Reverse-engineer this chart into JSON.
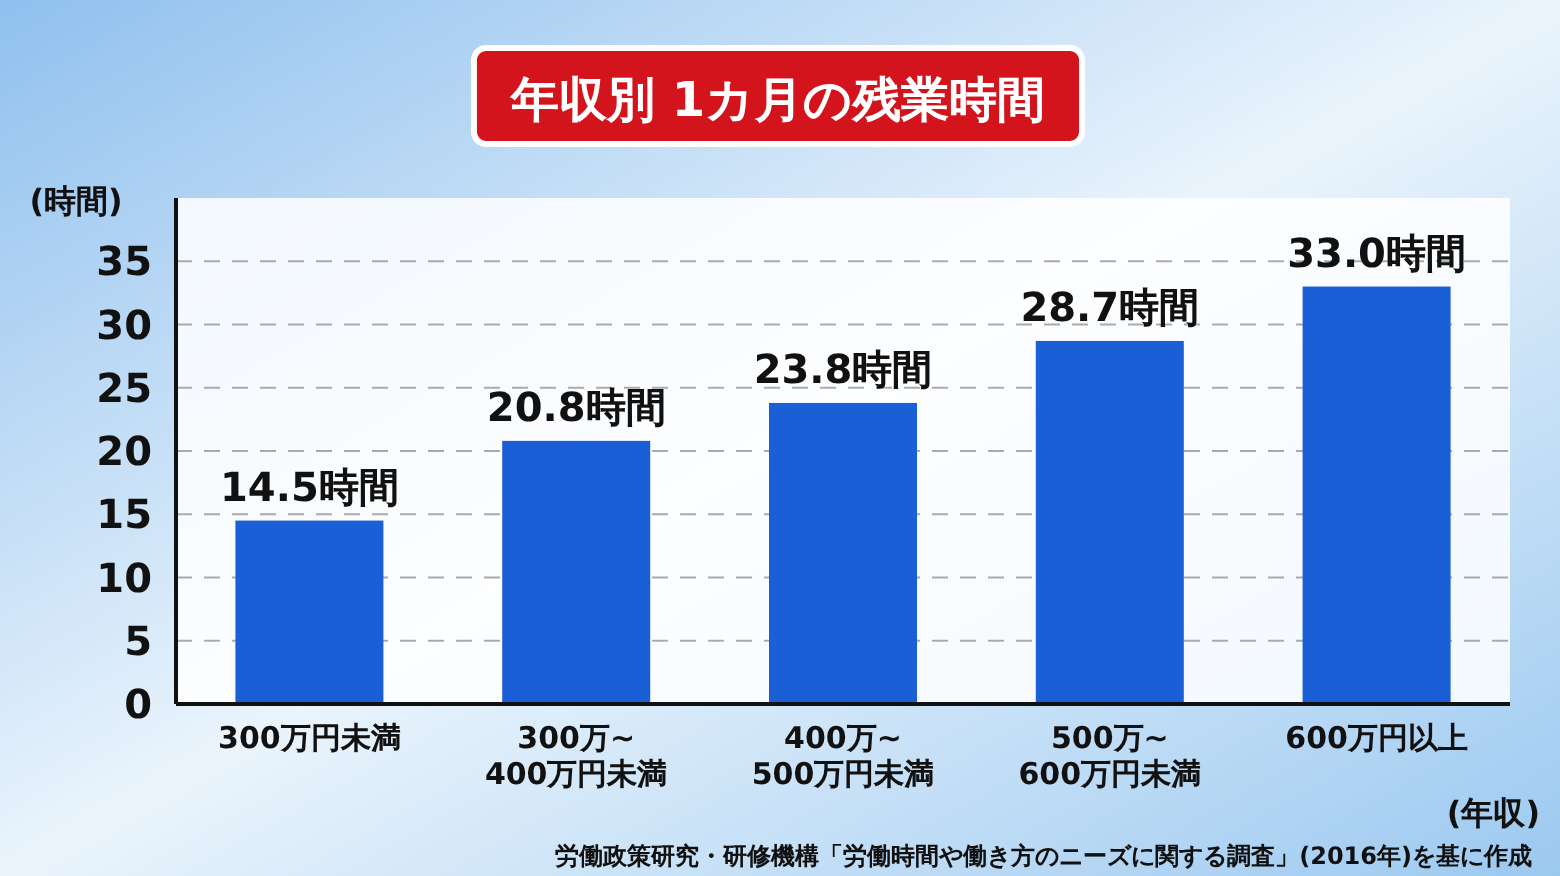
{
  "chart_data": {
    "type": "bar",
    "title": "年収別 1カ月の残業時間",
    "ylabel": "(時間)",
    "xlabel": "(年収)",
    "annotations": [
      "労働政策研究・研修機構「労働時間や働き方のニーズに関する調査」(2016年)を基に作成"
    ],
    "categories": [
      "300万円未満",
      "300万~\n400万円未満",
      "400万~\n500万円未満",
      "500万~\n600万円未満",
      "600万円以上"
    ],
    "values": [
      14.5,
      20.8,
      23.8,
      28.7,
      33.0
    ],
    "value_labels": [
      "14.5時間",
      "20.8時間",
      "23.8時間",
      "28.7時間",
      "33.0時間"
    ],
    "color": "#1a5fd6",
    "ylim": [
      0,
      40
    ],
    "yticks": [
      0,
      5,
      10,
      15,
      20,
      25,
      30,
      35
    ],
    "grid": "y"
  }
}
